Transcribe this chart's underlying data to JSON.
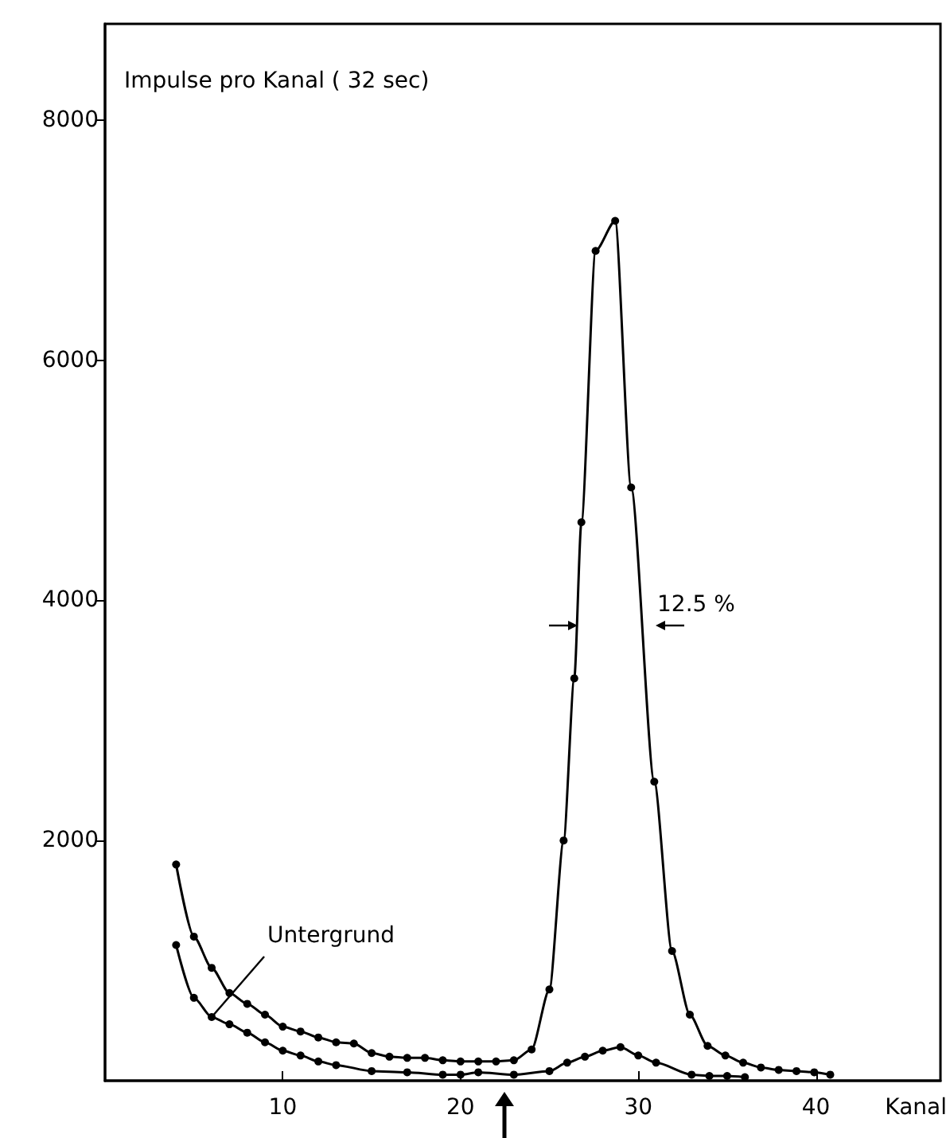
{
  "chart_data": {
    "type": "line",
    "ylabel": "Impulse pro Kanal ( 32 sec)",
    "xlabel": "Kanal",
    "xlim": [
      0,
      47
    ],
    "ylim": [
      0,
      8800
    ],
    "xticks": [
      10,
      20,
      30,
      40
    ],
    "yticks": [
      2000,
      4000,
      6000,
      8000
    ],
    "grid": false,
    "marker": "circle",
    "line_style": "solid",
    "series": [
      {
        "color": "#000000",
        "x": [
          4,
          5,
          6,
          7,
          8,
          9,
          10,
          11,
          12,
          13,
          14,
          15,
          16,
          17,
          18,
          19,
          20,
          21,
          22,
          23,
          24,
          25,
          25.8,
          26.4,
          26.8,
          27.6,
          28.7,
          29.6,
          30.9,
          31.9,
          32.9,
          33.9,
          34.9,
          35.9,
          36.9,
          37.9,
          38.9,
          39.9,
          40.8
        ],
        "values": [
          1800,
          1200,
          940,
          730,
          640,
          550,
          450,
          410,
          360,
          320,
          310,
          230,
          200,
          190,
          190,
          170,
          160,
          160,
          160,
          170,
          260,
          760,
          2000,
          3350,
          4650,
          6910,
          7160,
          4940,
          2490,
          1080,
          550,
          290,
          210,
          150,
          110,
          90,
          80,
          70,
          50
        ]
      },
      {
        "color": "#000000",
        "x": [
          4,
          5,
          6,
          7,
          8,
          9,
          10,
          11,
          12,
          13,
          15,
          17,
          19,
          20,
          21,
          23,
          25,
          26,
          27,
          28,
          29,
          30,
          31,
          33,
          34,
          35,
          36
        ],
        "values": [
          1130,
          690,
          530,
          470,
          400,
          320,
          250,
          210,
          160,
          130,
          80,
          70,
          50,
          50,
          70,
          50,
          80,
          150,
          200,
          250,
          280,
          210,
          150,
          50,
          40,
          40,
          30
        ]
      }
    ],
    "annotations": [
      {
        "text": "Untergrund",
        "x": 6,
        "y": 530
      },
      "12.5 %"
    ]
  }
}
